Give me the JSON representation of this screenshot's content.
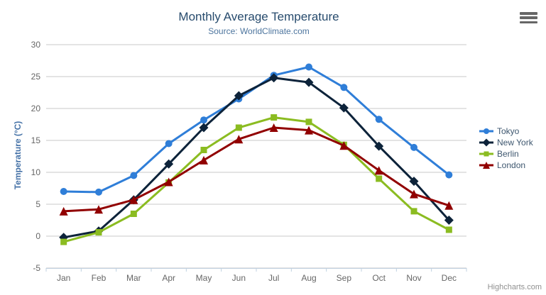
{
  "title": "Monthly Average Temperature",
  "subtitle": "Source: WorldClimate.com",
  "credits": "Highcharts.com",
  "icons": {
    "export_menu": "hamburger-menu"
  },
  "colors": {
    "background": "#FFFFFF",
    "title": "#274b6d",
    "subtitle": "#4d759e",
    "axis_title": "#4572A7",
    "tick_label": "#666666",
    "grid_line": "#C8C8C8",
    "axis_line": "#C0D0E0",
    "legend_text": "#3E576F",
    "credits_text": "#909090",
    "export_icon": "#666666"
  },
  "chart_data": {
    "type": "line",
    "title": "Monthly Average Temperature",
    "subtitle": "Source: WorldClimate.com",
    "categories": [
      "Jan",
      "Feb",
      "Mar",
      "Apr",
      "May",
      "Jun",
      "Jul",
      "Aug",
      "Sep",
      "Oct",
      "Nov",
      "Dec"
    ],
    "xlabel": "",
    "ylabel": "Temperature (°C)",
    "ylim": [
      -5,
      30
    ],
    "yticks": [
      -5,
      0,
      5,
      10,
      15,
      20,
      25,
      30
    ],
    "grid": true,
    "legend_position": "right",
    "series": [
      {
        "name": "Tokyo",
        "color": "#2f7ed8",
        "marker": "circle",
        "values": [
          7.0,
          6.9,
          9.5,
          14.5,
          18.2,
          21.5,
          25.2,
          26.5,
          23.3,
          18.3,
          13.9,
          9.6
        ]
      },
      {
        "name": "New York",
        "color": "#0d233a",
        "marker": "diamond",
        "values": [
          -0.2,
          0.8,
          5.7,
          11.3,
          17.0,
          22.0,
          24.8,
          24.1,
          20.1,
          14.1,
          8.6,
          2.5
        ]
      },
      {
        "name": "Berlin",
        "color": "#8bbc21",
        "marker": "square",
        "values": [
          -0.9,
          0.6,
          3.5,
          8.4,
          13.5,
          17.0,
          18.6,
          17.9,
          14.3,
          9.0,
          3.9,
          1.0
        ]
      },
      {
        "name": "London",
        "color": "#910000",
        "marker": "triangle",
        "values": [
          3.9,
          4.2,
          5.7,
          8.5,
          11.9,
          15.2,
          17.0,
          16.6,
          14.2,
          10.3,
          6.6,
          4.8
        ]
      }
    ]
  }
}
